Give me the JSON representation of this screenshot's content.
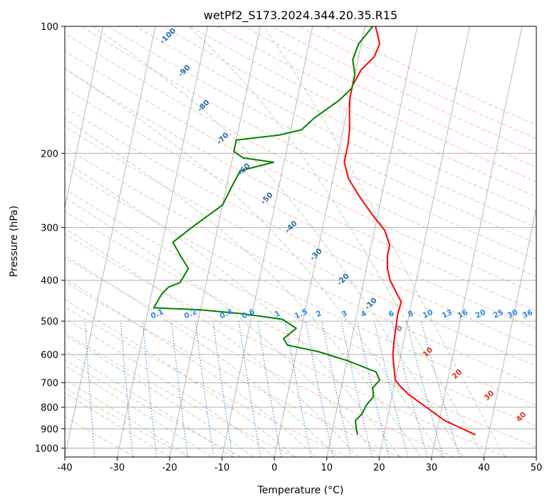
{
  "chart_data": {
    "type": "line",
    "title": "wetPf2_S173.2024.344.20.35.R15",
    "xlabel": "Temperature (°C)",
    "ylabel": "Pressure (hPa)",
    "xlim": [
      -40,
      50
    ],
    "ylim": [
      1050,
      100
    ],
    "y_scale": "log",
    "x_ticks": [
      -40,
      -30,
      -20,
      -10,
      0,
      10,
      20,
      30,
      40,
      50
    ],
    "y_ticks": [
      100,
      200,
      300,
      400,
      500,
      600,
      700,
      800,
      900,
      1000
    ],
    "grid": true,
    "skew_lines": {
      "labels": []
    },
    "dry_adiabat_labels": [],
    "moist_adiabat_labels": [
      "-100",
      "-90",
      "-80",
      "-70",
      "-60",
      "-50",
      "-40",
      "-30",
      "-20",
      "-10",
      "0",
      "10",
      "20",
      "30",
      "40"
    ],
    "mixing_ratio_labels": [
      "0.1",
      "0.2",
      "0.4",
      "0.6",
      "1",
      "1.5",
      "2",
      "3",
      "4",
      "6",
      "8",
      "10",
      "13",
      "16",
      "20",
      "25",
      "30",
      "36"
    ],
    "series": [
      {
        "role": "temperature",
        "color": "#ff0000",
        "points": [
          [
            37.5,
            930
          ],
          [
            31,
            860
          ],
          [
            27,
            800
          ],
          [
            23,
            745
          ],
          [
            21,
            710
          ],
          [
            20,
            690
          ],
          [
            19.5,
            660
          ],
          [
            19,
            630
          ],
          [
            18.5,
            600
          ],
          [
            18.2,
            560
          ],
          [
            18,
            520
          ],
          [
            17.8,
            480
          ],
          [
            18,
            450
          ],
          [
            16.5,
            425
          ],
          [
            15,
            400
          ],
          [
            14,
            375
          ],
          [
            13.5,
            350
          ],
          [
            13.5,
            330
          ],
          [
            12,
            305
          ],
          [
            9,
            280
          ],
          [
            6,
            255
          ],
          [
            3,
            230
          ],
          [
            1.5,
            210
          ],
          [
            1.5,
            190
          ],
          [
            1.2,
            175
          ],
          [
            0.5,
            160
          ],
          [
            0,
            148
          ],
          [
            0,
            138
          ],
          [
            1,
            127
          ],
          [
            3,
            118
          ],
          [
            3.5,
            110
          ],
          [
            2.5,
            103
          ],
          [
            2,
            100
          ]
        ]
      },
      {
        "role": "dewpoint",
        "color": "#008000",
        "points": [
          [
            15,
            930
          ],
          [
            14.5,
            900
          ],
          [
            14,
            860
          ],
          [
            15,
            830
          ],
          [
            15.5,
            790
          ],
          [
            16.5,
            755
          ],
          [
            16,
            720
          ],
          [
            17,
            690
          ],
          [
            16,
            660
          ],
          [
            10,
            620
          ],
          [
            4,
            590
          ],
          [
            -2,
            570
          ],
          [
            -3,
            550
          ],
          [
            -1,
            520
          ],
          [
            -4,
            495
          ],
          [
            -12,
            480
          ],
          [
            -20,
            470
          ],
          [
            -29,
            465
          ],
          [
            -28,
            430
          ],
          [
            -27,
            415
          ],
          [
            -25,
            405
          ],
          [
            -24,
            375
          ],
          [
            -26,
            350
          ],
          [
            -28,
            325
          ],
          [
            -25,
            300
          ],
          [
            -20,
            265
          ],
          [
            -19,
            240
          ],
          [
            -18,
            220
          ],
          [
            -12,
            210
          ],
          [
            -18,
            205
          ],
          [
            -20,
            198
          ],
          [
            -20,
            186
          ],
          [
            -12,
            181
          ],
          [
            -8,
            176
          ],
          [
            -6,
            165
          ],
          [
            -2,
            150
          ],
          [
            0,
            140
          ],
          [
            0,
            130
          ],
          [
            -1,
            120
          ],
          [
            -0.5,
            110
          ],
          [
            1.5,
            100
          ]
        ]
      }
    ]
  }
}
